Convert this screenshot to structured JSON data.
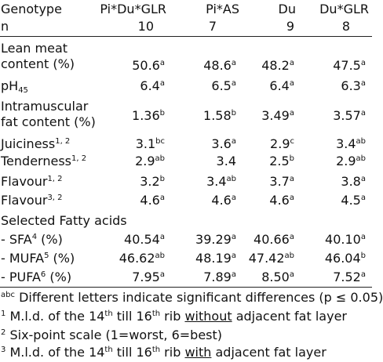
{
  "header": {
    "genotype_label": "Genotype",
    "n_label": "n",
    "columns": [
      {
        "name": "Pi*Du*GLR",
        "n": "10"
      },
      {
        "name": "Pi*AS",
        "n": "7"
      },
      {
        "name": "Du",
        "n": "9"
      },
      {
        "name": "Du*GLR",
        "n": "8"
      }
    ]
  },
  "rows": {
    "lean": {
      "label1": "Lean meat",
      "label2": "content (%)",
      "values": [
        "50.6",
        "48.6",
        "48.2",
        "47.5"
      ],
      "sups": [
        "a",
        "a",
        "a",
        "a"
      ]
    },
    "ph": {
      "label": "pH",
      "label_sub": "45",
      "values": [
        "6.4",
        "6.5",
        "6.4",
        "6.3"
      ],
      "sups": [
        "a",
        "a",
        "a",
        "a"
      ]
    },
    "imf": {
      "label1": "Intramuscular",
      "label2": "fat content (%)",
      "values": [
        "1.36",
        "1.58",
        "3.49",
        "3.57"
      ],
      "sups": [
        "b",
        "b",
        "a",
        "a"
      ]
    },
    "juiciness": {
      "label": "Juiciness",
      "label_sup": "1, 2",
      "values": [
        "3.1",
        "3.6",
        "2.9",
        "3.4"
      ],
      "sups": [
        "bc",
        "a",
        "c",
        "ab"
      ]
    },
    "tenderness": {
      "label": "Tenderness",
      "label_sup": "1, 2",
      "values": [
        "2.9",
        "3.4",
        "2.5",
        "2.9"
      ],
      "sups": [
        "ab",
        "",
        "b",
        "ab"
      ]
    },
    "flavour12": {
      "label": "Flavour",
      "label_sup": "1, 2",
      "values": [
        "3.2",
        "3.4",
        "3.7",
        "3.8"
      ],
      "sups": [
        "b",
        "ab",
        "a",
        "a"
      ]
    },
    "flavour32": {
      "label": "Flavour",
      "label_sup": "3, 2",
      "values": [
        "4.6",
        "4.6",
        "4.6",
        "4.5"
      ],
      "sups": [
        "a",
        "a",
        "a",
        "a"
      ]
    },
    "fatty_heading": "Selected Fatty acids",
    "sfa": {
      "label": "- SFA",
      "label_sup": "4",
      "label_tail": " (%)",
      "values": [
        "40.54",
        "39.29",
        "40.66",
        "40.10"
      ],
      "sups": [
        "a",
        "a",
        "a",
        "a"
      ]
    },
    "mufa": {
      "label": "- MUFA",
      "label_sup": "5",
      "label_tail": " (%)",
      "values": [
        "46.62",
        "48.19",
        "47.42",
        "46.04"
      ],
      "sups": [
        "ab",
        "a",
        "ab",
        "b"
      ]
    },
    "pufa": {
      "label": "- PUFA",
      "label_sup": "6",
      "label_tail": " (%)",
      "values": [
        "7.95",
        "7.89",
        "8.50",
        "7.52"
      ],
      "sups": [
        "a",
        "a",
        "a",
        "a"
      ]
    }
  },
  "footnotes": {
    "abc_sup": "abc",
    "abc_text": " Different letters indicate significant differences (p ≤ 0.05)",
    "fn1_sup": "1",
    "fn1_a": " M.l.d. of the 14",
    "fn1_th1": "th",
    "fn1_b": " till 16",
    "fn1_th2": "th",
    "fn1_c": " rib ",
    "fn1_ul": "without",
    "fn1_d": " adjacent fat layer",
    "fn2_sup": "2",
    "fn2_text": " Six-point scale (1=worst, 6=best)",
    "fn3_sup": "3",
    "fn3_a": " M.l.d. of the 14",
    "fn3_th1": "th",
    "fn3_b": " till 16",
    "fn3_th2": "th",
    "fn3_c": " rib ",
    "fn3_ul": "with",
    "fn3_d": " adjacent fat layer"
  }
}
